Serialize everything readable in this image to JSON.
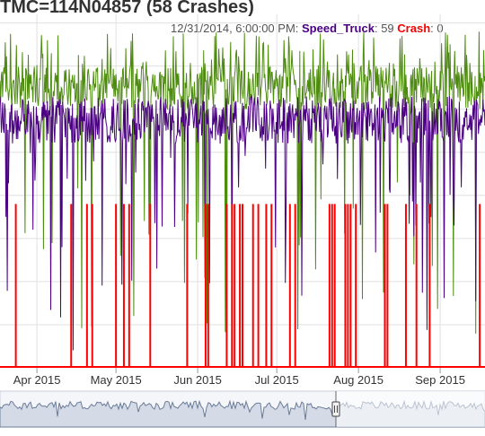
{
  "title": "TMC=114N04857 (58 Crashes)",
  "legend": {
    "timestamp": "12/31/2014, 6:00:00 PM:",
    "series_1_label": "Speed_Truck",
    "series_1_value": "59",
    "series_2_label": "Crash",
    "series_2_value": "0"
  },
  "colors": {
    "speed_all": "#4e8c0f",
    "speed_truck": "#4b0082",
    "crash": "#ff0000",
    "grid": "#e0e0e0",
    "navigator_fill": "#d5dbe6",
    "navigator_line": "#6b7c99"
  },
  "chart_data": {
    "type": "line",
    "x_axis": {
      "tick_labels": [
        "Apr 2015",
        "May 2015",
        "Jun 2015",
        "Jul 2015",
        "Aug 2015",
        "Sep 2015"
      ],
      "tick_dates": [
        "2015-04-01",
        "2015-05-01",
        "2015-06-01",
        "2015-07-01",
        "2015-08-01",
        "2015-09-01"
      ],
      "range": [
        "2015-03-18",
        "2015-09-18"
      ]
    },
    "series": [
      {
        "name": "",
        "color": "#4e8c0f",
        "typical_range": [
          60,
          70
        ],
        "peak": 78,
        "min": 5
      },
      {
        "name": "Speed_Truck",
        "color": "#4b0082",
        "typical_range": [
          52,
          63
        ],
        "min": 4
      },
      {
        "name": "Crash",
        "color": "#ff0000"
      }
    ],
    "crash_dates": [
      "2015-03-24",
      "2015-04-14",
      "2015-04-20",
      "2015-04-22",
      "2015-05-01",
      "2015-05-04",
      "2015-05-06",
      "2015-05-14",
      "2015-05-28",
      "2015-06-04",
      "2015-06-05",
      "2015-06-12",
      "2015-06-14",
      "2015-06-15",
      "2015-06-17",
      "2015-06-18",
      "2015-06-22",
      "2015-06-24",
      "2015-06-27",
      "2015-06-29",
      "2015-07-06",
      "2015-07-08",
      "2015-07-21",
      "2015-07-22",
      "2015-07-23",
      "2015-07-27",
      "2015-07-28",
      "2015-07-29",
      "2015-07-31",
      "2015-08-11",
      "2015-08-12",
      "2015-08-19",
      "2015-08-23",
      "2015-08-28",
      "2015-09-16"
    ],
    "grid": true,
    "navigator": true,
    "navigator_selection": [
      "2015-03-18",
      "2015-09-18"
    ]
  }
}
